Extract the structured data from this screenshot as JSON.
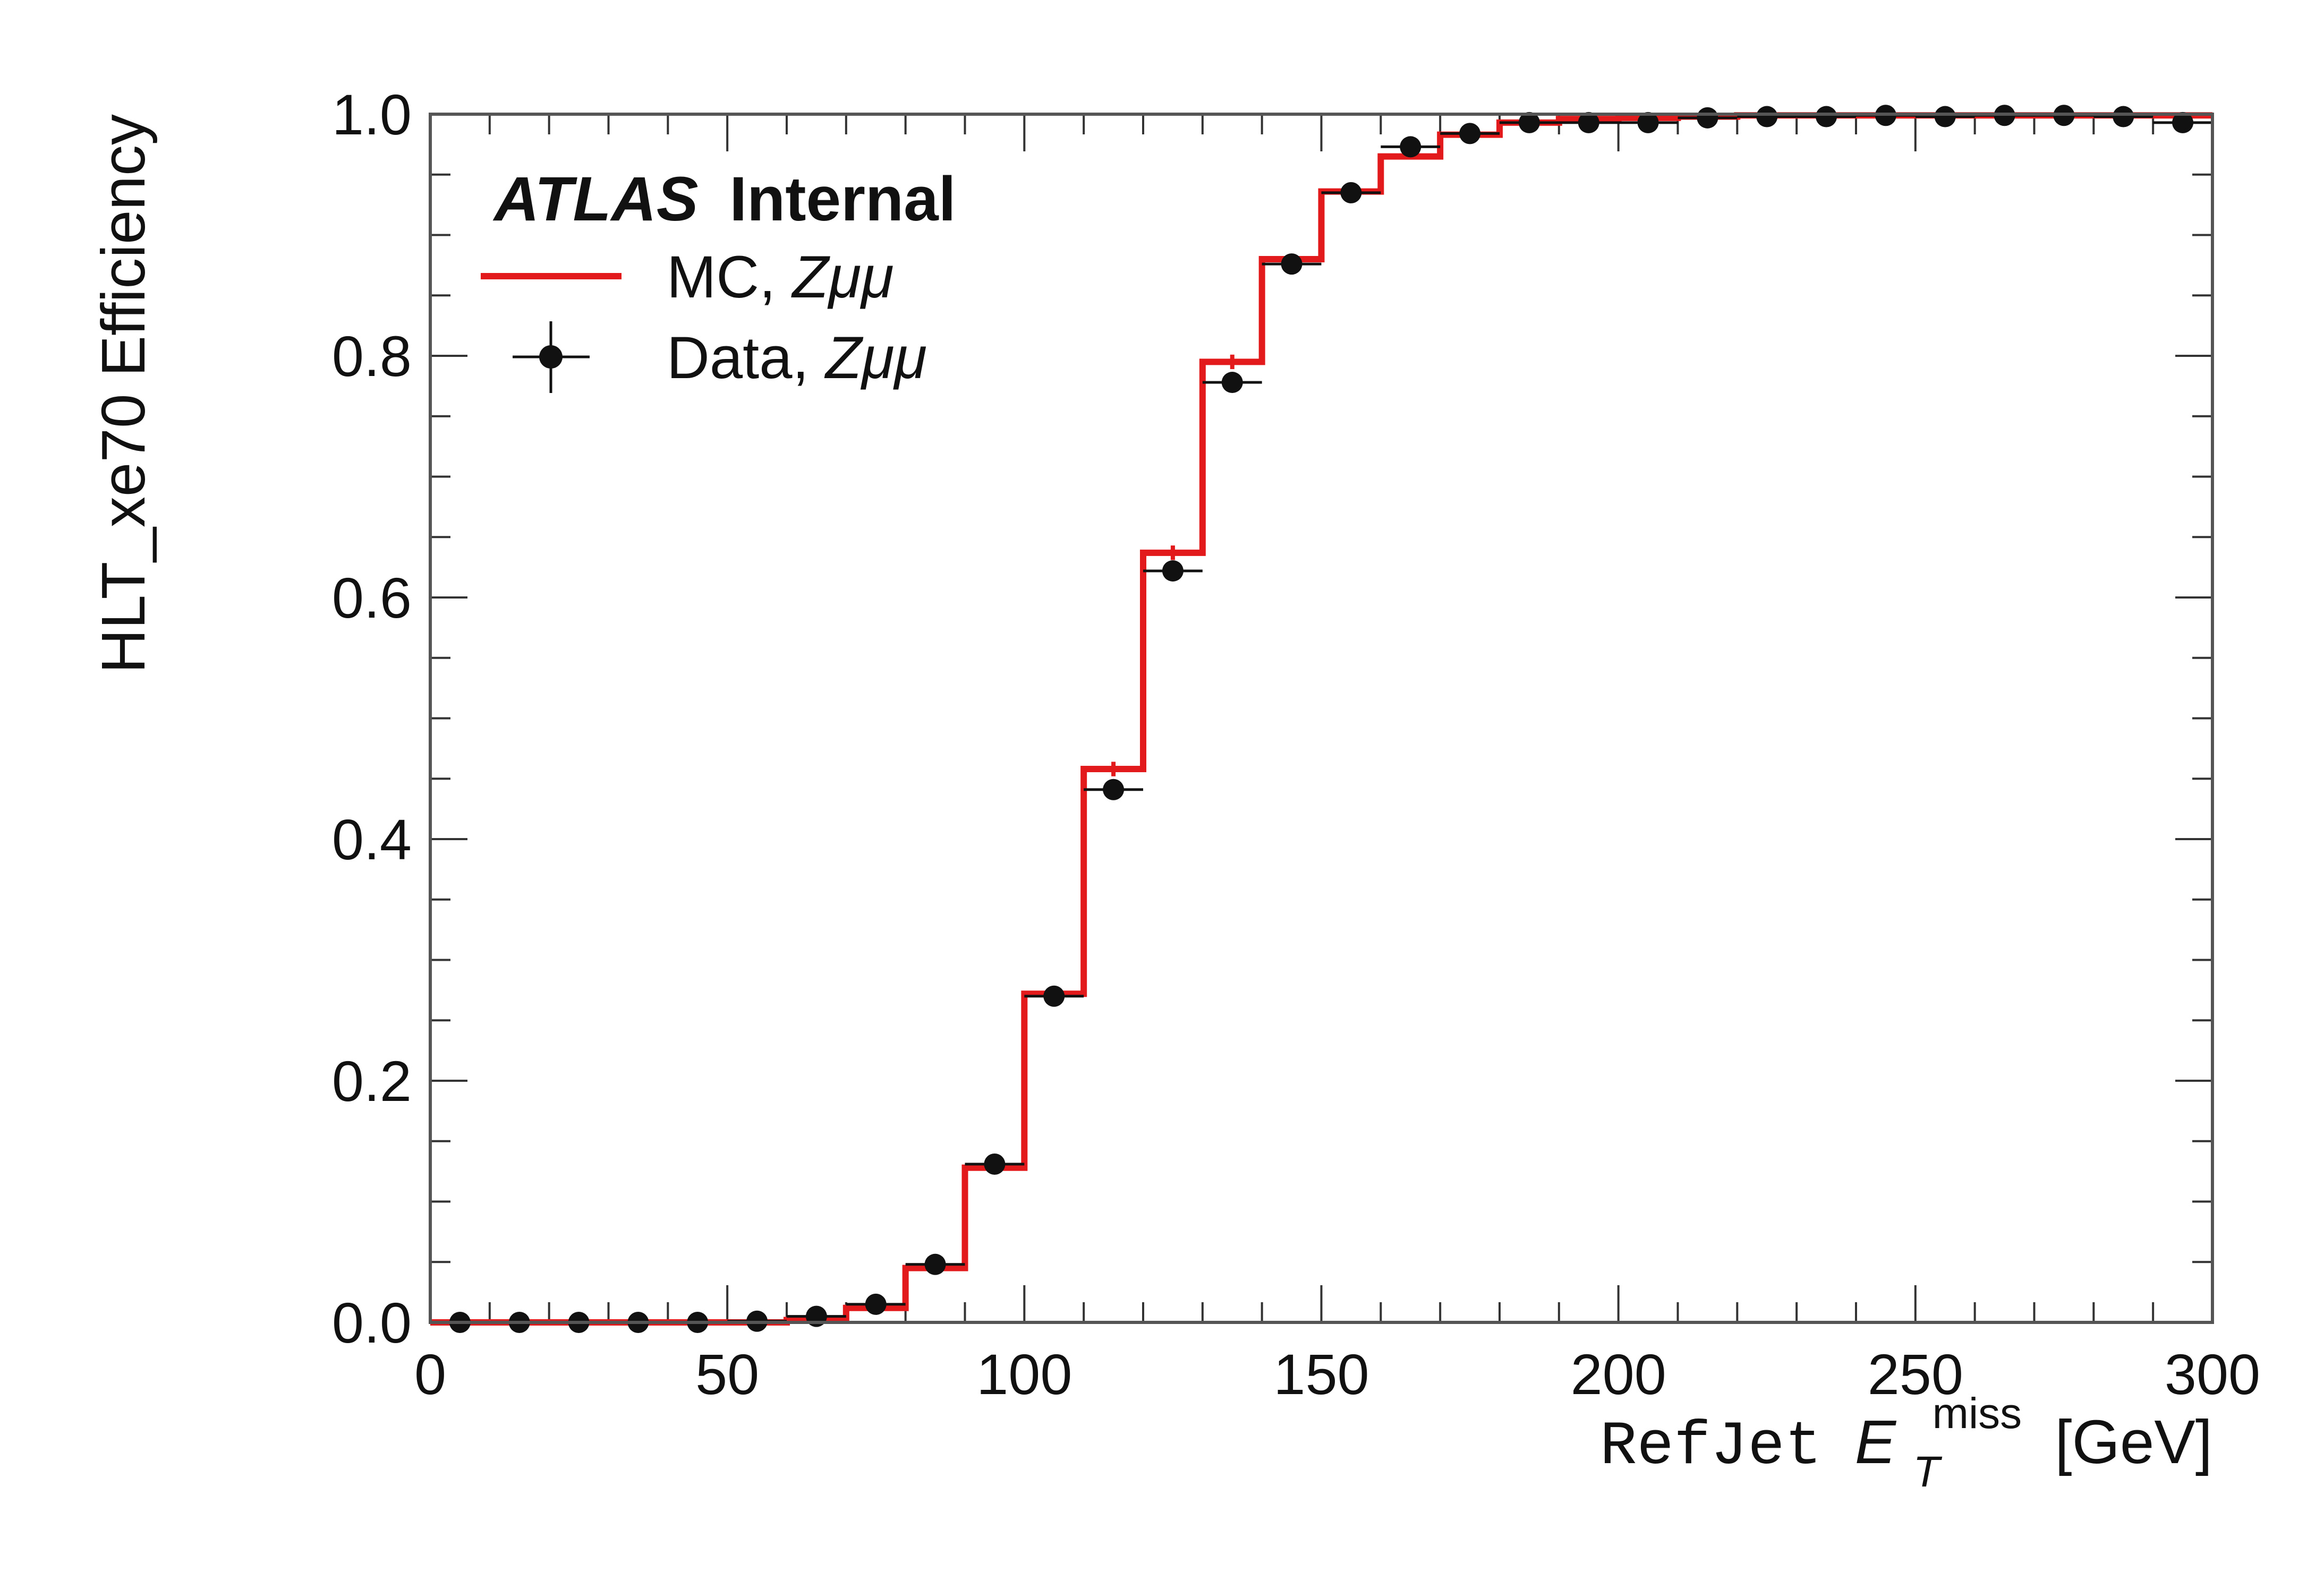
{
  "chart_data": {
    "type": "line",
    "title": "",
    "xlabel": {
      "prefix": "RefJet",
      "symbol": "E",
      "subscript": "T",
      "superscript": "miss",
      "unit": "[GeV]"
    },
    "ylabel": "HLT_xe70 Efficiency",
    "xlim": [
      0,
      300
    ],
    "ylim": [
      0,
      1.0
    ],
    "xticks": [
      "0",
      "50",
      "100",
      "150",
      "200",
      "250",
      "300"
    ],
    "yticks": [
      "0.0",
      "0.2",
      "0.4",
      "0.6",
      "0.8",
      "1.0"
    ],
    "grid": false,
    "legend_position": "top-left",
    "experiment_label": {
      "bold_italic": "ATLAS",
      "bold": "Internal"
    },
    "bin_edges": [
      0,
      10,
      20,
      30,
      40,
      50,
      60,
      70,
      80,
      90,
      100,
      110,
      120,
      130,
      140,
      150,
      160,
      170,
      180,
      190,
      200,
      210,
      220,
      230,
      240,
      250,
      260,
      270,
      280,
      290,
      300
    ],
    "series": [
      {
        "name": "MC, Zμμ",
        "legend_plain": "MC, ",
        "legend_math": "Zμμ",
        "style": "step",
        "color": "#e31a1c",
        "values": [
          0.0,
          0.0,
          0.0,
          0.0,
          0.0,
          0.0,
          0.002,
          0.012,
          0.045,
          0.128,
          0.272,
          0.458,
          0.637,
          0.795,
          0.88,
          0.936,
          0.965,
          0.983,
          0.993,
          0.996,
          0.997,
          0.998,
          0.999,
          0.999,
          0.999,
          0.999,
          0.999,
          0.999,
          0.999,
          0.999
        ],
        "errors": [
          0,
          0,
          0,
          0,
          0,
          0,
          0.001,
          0.002,
          0.003,
          0.004,
          0.005,
          0.006,
          0.006,
          0.006,
          0.004,
          0.003,
          0.002,
          0.002,
          0.001,
          0.001,
          0.001,
          0.001,
          0.001,
          0.001,
          0.001,
          0.001,
          0.001,
          0.001,
          0.001,
          0.001
        ]
      },
      {
        "name": "Data, Zμμ",
        "legend_plain": "Data, ",
        "legend_math": "Zμμ",
        "style": "points",
        "color": "#111111",
        "x": [
          5,
          15,
          25,
          35,
          45,
          55,
          65,
          75,
          85,
          95,
          105,
          115,
          125,
          135,
          145,
          155,
          165,
          175,
          185,
          195,
          205,
          215,
          225,
          235,
          245,
          255,
          265,
          275,
          285,
          295
        ],
        "values": [
          0.0,
          0.0,
          0.0,
          0.0,
          0.0,
          0.001,
          0.005,
          0.015,
          0.048,
          0.131,
          0.27,
          0.441,
          0.622,
          0.778,
          0.876,
          0.935,
          0.973,
          0.984,
          0.993,
          0.993,
          0.993,
          0.997,
          0.998,
          0.998,
          0.999,
          0.998,
          0.999,
          0.999,
          0.998,
          0.993
        ]
      }
    ]
  }
}
